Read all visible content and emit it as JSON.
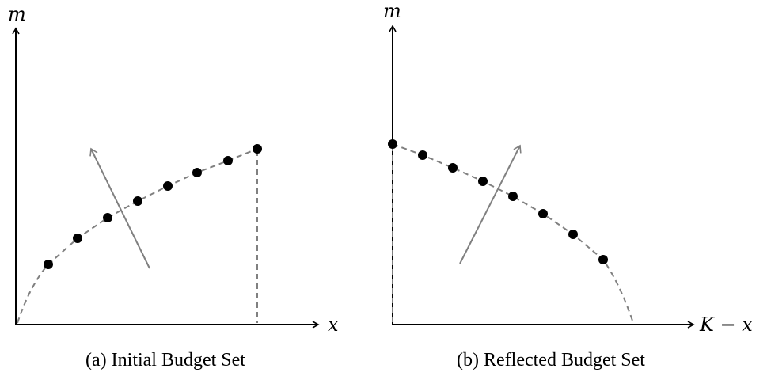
{
  "panels": [
    {
      "id": "a",
      "caption": "(a) Initial Budget Set",
      "x_axis_label": "x",
      "y_axis_label": "m"
    },
    {
      "id": "b",
      "caption": "(b) Reflected Budget Set",
      "x_axis_label": "K − x",
      "y_axis_label": "m"
    }
  ],
  "colors": {
    "axes": "#000000",
    "points": "#000000",
    "dashed_curve": "#808080",
    "arrow": "#808080"
  }
}
